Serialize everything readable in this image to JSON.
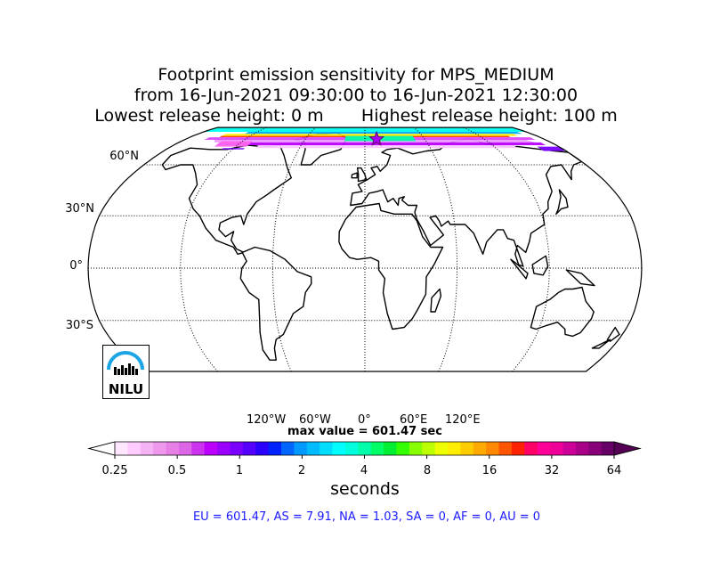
{
  "title": {
    "line1": "Footprint emission sensitivity for MPS_MEDIUM",
    "line2": "from 16-Jun-2021 09:30:00 to 16-Jun-2021 12:30:00",
    "line3": "Lowest release height: 0 m       Highest release height: 100 m"
  },
  "map": {
    "projection": "robinson",
    "lat_labels": [
      "60°N",
      "30°N",
      "0°",
      "30°S"
    ],
    "lon_labels": [
      "120°W",
      "60°W",
      "0°",
      "60°E",
      "120°E"
    ],
    "release_marker": "star-icon"
  },
  "max_value_text": "max value = 601.47 sec",
  "colorbar": {
    "ticks": [
      "0.25",
      "0.5",
      "1",
      "2",
      "4",
      "8",
      "16",
      "32",
      "64"
    ],
    "unit": "seconds",
    "colors": [
      "#ffe6ff",
      "#ffccff",
      "#f5b3f5",
      "#ee99ee",
      "#e680e6",
      "#dd66e6",
      "#cc33ee",
      "#bb00ff",
      "#9900ff",
      "#7a00ff",
      "#5500ff",
      "#2a00ff",
      "#0022ff",
      "#0066ff",
      "#0099ff",
      "#00bbff",
      "#00ddff",
      "#00ffff",
      "#00ffdd",
      "#00ffaa",
      "#00ff66",
      "#00ee33",
      "#33ff00",
      "#88ff00",
      "#bbff00",
      "#eeff00",
      "#ffee00",
      "#ffcc00",
      "#ffaa00",
      "#ff8800",
      "#ff5500",
      "#ff2200",
      "#ff0066",
      "#ff0099",
      "#ee0099",
      "#cc0099",
      "#aa0088",
      "#880077",
      "#660066"
    ]
  },
  "logo": {
    "text": "NILU"
  },
  "regions_text": "EU = 601.47,  AS = 7.91,  NA = 1.03,  SA = 0,  AF = 0,  AU = 0"
}
